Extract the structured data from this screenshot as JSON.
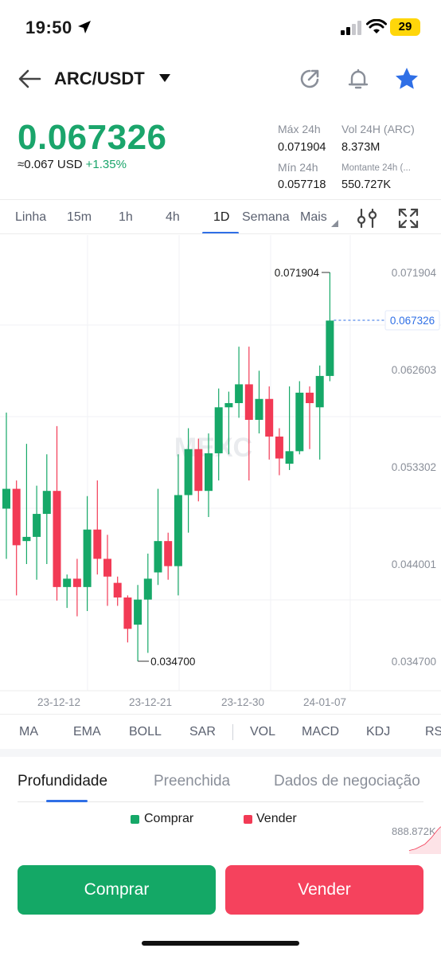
{
  "status_bar": {
    "time": "19:50",
    "battery": "29"
  },
  "header": {
    "pair": "ARC/USDT",
    "icons": [
      "back-arrow-icon",
      "caret-down-icon",
      "share-icon",
      "bell-icon",
      "star-icon"
    ],
    "star_color": "#2f6fe6"
  },
  "price": {
    "last": "0.067326",
    "usd_approx": "≈0.067 USD",
    "change": "+1.35%",
    "up_color": "#1aa56b"
  },
  "stats": {
    "high_label": "Máx 24h",
    "high_value": "0.071904",
    "vol_label": "Vol 24H (ARC)",
    "vol_value": "8.373M",
    "low_label": "Mín 24h",
    "low_value": "0.057718",
    "amount_label": "Montante 24h (...",
    "amount_value": "550.727K"
  },
  "time_tabs": {
    "items": [
      "Linha",
      "15m",
      "1h",
      "4h",
      "1D",
      "Semana",
      "Mais"
    ],
    "active": "1D"
  },
  "chart_data": {
    "type": "candlestick",
    "watermark": "MEXC",
    "y_ticks": [
      "0.071904",
      "0.062603",
      "0.053302",
      "0.044001",
      "0.034700"
    ],
    "x_ticks": [
      "23-12-12",
      "23-12-21",
      "23-12-30",
      "24-01-07"
    ],
    "high_label": "0.071904",
    "low_label": "0.034700",
    "current_price": "0.067326",
    "up_color": "#16a868",
    "down_color": "#f23a55",
    "candles": [
      {
        "o": 0.0493,
        "h": 0.0585,
        "l": 0.0445,
        "c": 0.0512
      },
      {
        "o": 0.0512,
        "h": 0.052,
        "l": 0.041,
        "c": 0.0458
      },
      {
        "o": 0.0462,
        "h": 0.0555,
        "l": 0.044,
        "c": 0.0466
      },
      {
        "o": 0.0466,
        "h": 0.0515,
        "l": 0.0425,
        "c": 0.0488
      },
      {
        "o": 0.0488,
        "h": 0.0545,
        "l": 0.044,
        "c": 0.051
      },
      {
        "o": 0.051,
        "h": 0.0572,
        "l": 0.0405,
        "c": 0.0418
      },
      {
        "o": 0.0418,
        "h": 0.043,
        "l": 0.0398,
        "c": 0.0426
      },
      {
        "o": 0.0426,
        "h": 0.0445,
        "l": 0.039,
        "c": 0.0418
      },
      {
        "o": 0.0418,
        "h": 0.0505,
        "l": 0.0395,
        "c": 0.0473
      },
      {
        "o": 0.0473,
        "h": 0.052,
        "l": 0.043,
        "c": 0.0445
      },
      {
        "o": 0.0445,
        "h": 0.0468,
        "l": 0.04,
        "c": 0.0428
      },
      {
        "o": 0.0422,
        "h": 0.0428,
        "l": 0.04,
        "c": 0.0408
      },
      {
        "o": 0.0408,
        "h": 0.041,
        "l": 0.0365,
        "c": 0.0378
      },
      {
        "o": 0.0382,
        "h": 0.042,
        "l": 0.0347,
        "c": 0.0406
      },
      {
        "o": 0.0406,
        "h": 0.045,
        "l": 0.0355,
        "c": 0.0426
      },
      {
        "o": 0.0432,
        "h": 0.0512,
        "l": 0.042,
        "c": 0.0462
      },
      {
        "o": 0.0462,
        "h": 0.047,
        "l": 0.0425,
        "c": 0.0438
      },
      {
        "o": 0.0438,
        "h": 0.0545,
        "l": 0.041,
        "c": 0.0506
      },
      {
        "o": 0.0506,
        "h": 0.057,
        "l": 0.047,
        "c": 0.055
      },
      {
        "o": 0.055,
        "h": 0.056,
        "l": 0.05,
        "c": 0.051
      },
      {
        "o": 0.051,
        "h": 0.0565,
        "l": 0.0485,
        "c": 0.0546
      },
      {
        "o": 0.0546,
        "h": 0.0608,
        "l": 0.052,
        "c": 0.059
      },
      {
        "o": 0.059,
        "h": 0.0605,
        "l": 0.0545,
        "c": 0.0594
      },
      {
        "o": 0.0594,
        "h": 0.0648,
        "l": 0.058,
        "c": 0.0612
      },
      {
        "o": 0.0612,
        "h": 0.0648,
        "l": 0.052,
        "c": 0.0578
      },
      {
        "o": 0.0578,
        "h": 0.0625,
        "l": 0.0565,
        "c": 0.0598
      },
      {
        "o": 0.0598,
        "h": 0.061,
        "l": 0.054,
        "c": 0.0562
      },
      {
        "o": 0.0562,
        "h": 0.057,
        "l": 0.0525,
        "c": 0.0541
      },
      {
        "o": 0.0536,
        "h": 0.061,
        "l": 0.053,
        "c": 0.0548
      },
      {
        "o": 0.0548,
        "h": 0.0615,
        "l": 0.0545,
        "c": 0.0604
      },
      {
        "o": 0.0604,
        "h": 0.061,
        "l": 0.055,
        "c": 0.0594
      },
      {
        "o": 0.059,
        "h": 0.063,
        "l": 0.054,
        "c": 0.062
      },
      {
        "o": 0.062,
        "h": 0.0719,
        "l": 0.0615,
        "c": 0.0673
      }
    ]
  },
  "indicators": [
    "MA",
    "EMA",
    "BOLL",
    "SAR",
    "VOL",
    "MACD",
    "KDJ",
    "RS"
  ],
  "bottom_tabs": {
    "items": [
      "Profundidade",
      "Preenchida",
      "Dados de negociação"
    ],
    "active": "Profundidade"
  },
  "depth_legend": {
    "buy": "Comprar",
    "sell": "Vender",
    "value": "888.872K"
  },
  "actions": {
    "buy": "Comprar",
    "sell": "Vender"
  }
}
